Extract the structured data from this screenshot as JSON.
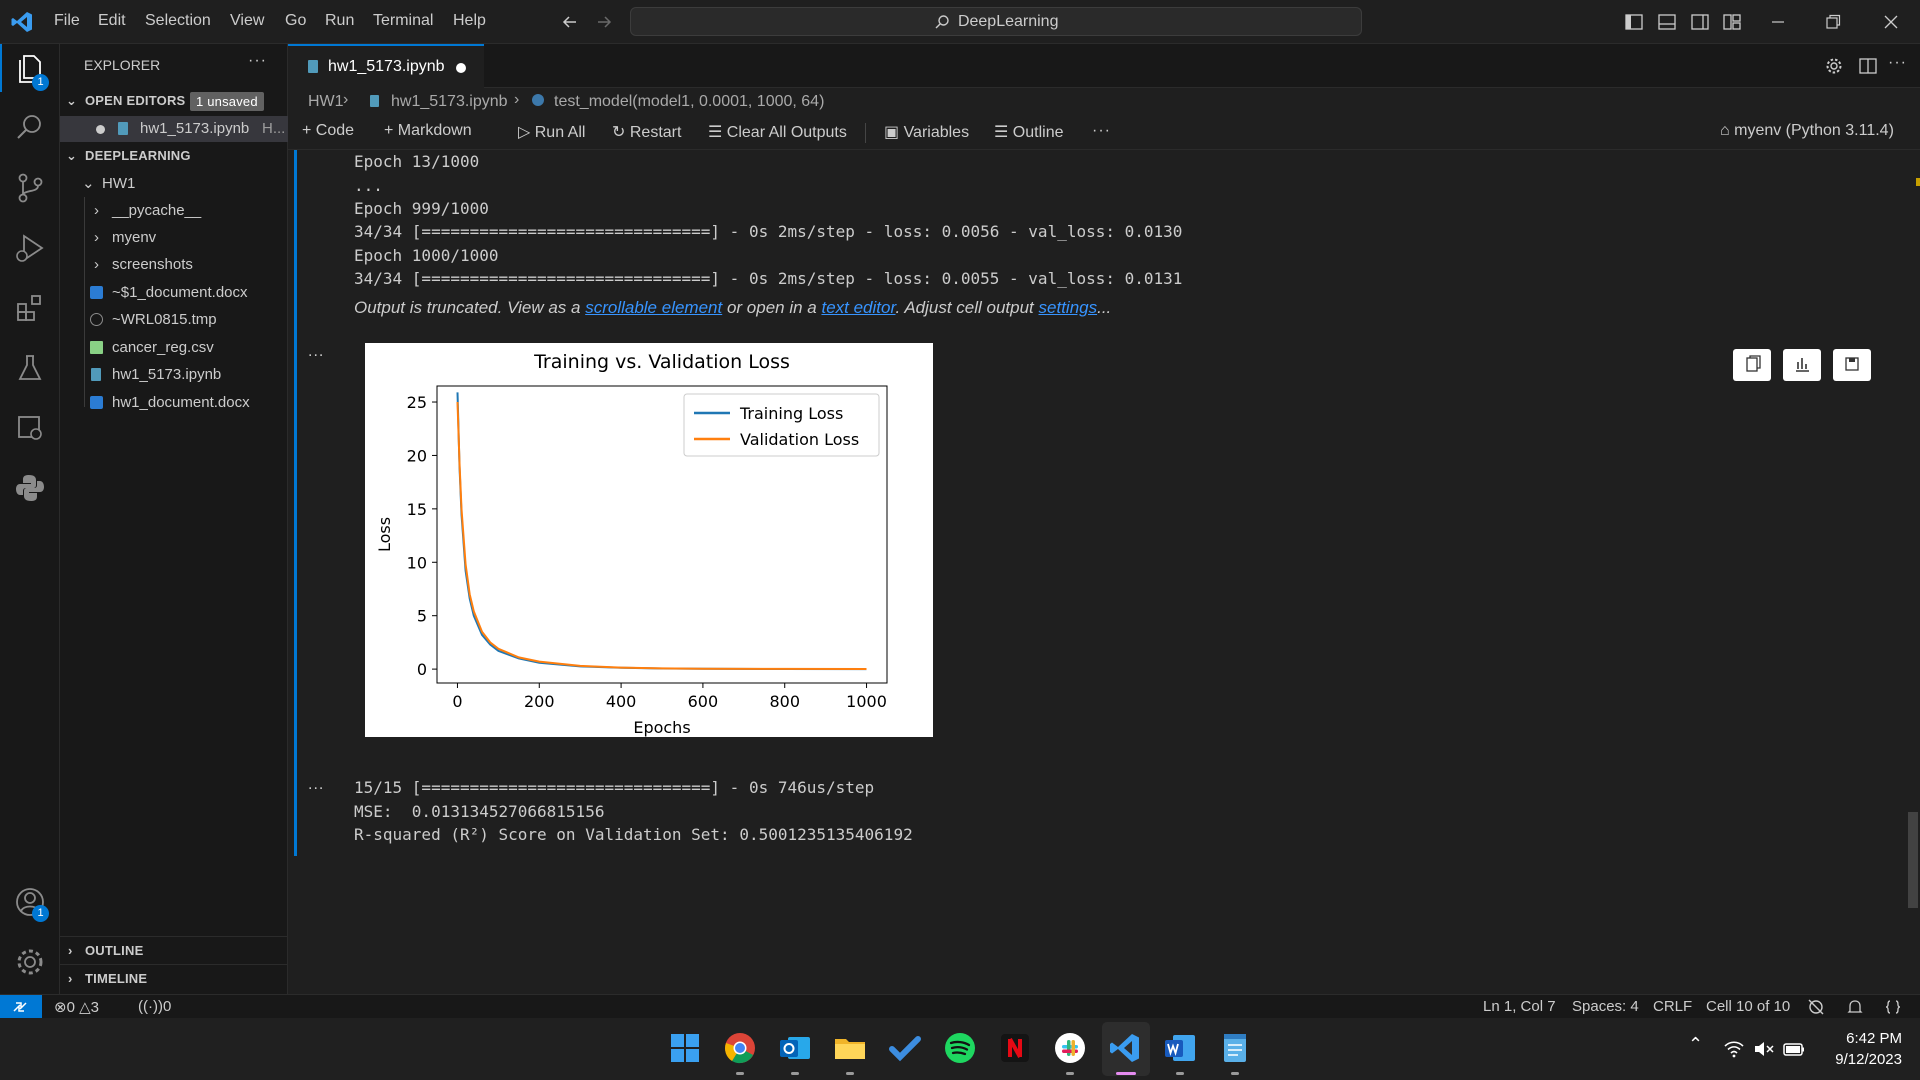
{
  "menu": [
    "File",
    "Edit",
    "Selection",
    "View",
    "Go",
    "Run",
    "Terminal",
    "Help"
  ],
  "search_text": "DeepLearning",
  "activity_badges": {
    "explorer": "1",
    "accounts": "1"
  },
  "sidebar": {
    "title": "EXPLORER",
    "open_editors_label": "OPEN EDITORS",
    "unsaved_badge": "1 unsaved",
    "open_editor_file": "hw1_5173.ipynb",
    "open_editor_suffix": "H...",
    "workspace_label": "DEEPLEARNING",
    "folder": "HW1",
    "items": [
      {
        "label": "__pycache__",
        "type": "folder"
      },
      {
        "label": "myenv",
        "type": "folder"
      },
      {
        "label": "screenshots",
        "type": "folder"
      },
      {
        "label": "~$1_document.docx",
        "type": "word"
      },
      {
        "label": "~WRL0815.tmp",
        "type": "tmp"
      },
      {
        "label": "cancer_reg.csv",
        "type": "csv"
      },
      {
        "label": "hw1_5173.ipynb",
        "type": "notebook"
      },
      {
        "label": "hw1_document.docx",
        "type": "word"
      }
    ],
    "outline_label": "OUTLINE",
    "timeline_label": "TIMELINE"
  },
  "tab": {
    "label": "hw1_5173.ipynb"
  },
  "breadcrumbs": {
    "folder": "HW1",
    "file": "hw1_5173.ipynb",
    "symbol": "test_model(model1, 0.0001, 1000, 64)"
  },
  "toolbar": {
    "code": "Code",
    "markdown": "Markdown",
    "run_all": "Run All",
    "restart": "Restart",
    "clear_outputs": "Clear All Outputs",
    "variables": "Variables",
    "outline": "Outline",
    "kernel": "myenv (Python 3.11.4)"
  },
  "output": {
    "lines": [
      "Epoch 13/1000",
      "...",
      "Epoch 999/1000",
      "34/34 [==============================] - 0s 2ms/step - loss: 0.0056 - val_loss: 0.0130",
      "Epoch 1000/1000",
      "34/34 [==============================] - 0s 2ms/step - loss: 0.0055 - val_loss: 0.0131"
    ],
    "truncated_prefix": "Output is truncated. View as a ",
    "truncated_link1": "scrollable element",
    "truncated_mid": " or open in a ",
    "truncated_link2": "text editor",
    "truncated_mid2": ". Adjust cell output ",
    "truncated_link3": "settings",
    "truncated_suffix": "...",
    "lines2": [
      "15/15 [==============================] - 0s 746us/step",
      "MSE:  0.013134527066815156",
      "R-squared (R²) Score on Validation Set: 0.5001235135406192"
    ],
    "ellipsis": "..."
  },
  "chart_data": {
    "type": "line",
    "title": "Training vs. Validation Loss",
    "xlabel": "Epochs",
    "ylabel": "Loss",
    "xlim": [
      -50,
      1050
    ],
    "ylim": [
      -1.3,
      26.5
    ],
    "xticks": [
      0,
      200,
      400,
      600,
      800,
      1000
    ],
    "yticks": [
      0,
      5,
      10,
      15,
      20,
      25
    ],
    "legend": "top-right",
    "series": [
      {
        "name": "Training Loss",
        "color": "#1f77b4",
        "x": [
          0,
          5,
          10,
          20,
          30,
          40,
          60,
          80,
          100,
          150,
          200,
          300,
          400,
          500,
          600,
          800,
          1000
        ],
        "y": [
          25.9,
          19.0,
          14.5,
          9.2,
          6.6,
          5.0,
          3.2,
          2.3,
          1.7,
          1.0,
          0.6,
          0.25,
          0.12,
          0.06,
          0.03,
          0.01,
          0.005
        ]
      },
      {
        "name": "Validation Loss",
        "color": "#ff7f0e",
        "x": [
          0,
          5,
          10,
          20,
          30,
          40,
          60,
          80,
          100,
          150,
          200,
          300,
          400,
          500,
          600,
          800,
          1000
        ],
        "y": [
          25.0,
          19.3,
          15.0,
          9.8,
          7.0,
          5.4,
          3.5,
          2.5,
          1.9,
          1.1,
          0.7,
          0.3,
          0.14,
          0.07,
          0.04,
          0.02,
          0.013
        ]
      }
    ]
  },
  "status": {
    "errors": "0",
    "warnings": "3",
    "ports": "0",
    "position": "Ln 1, Col 7",
    "spaces": "Spaces: 4",
    "eol": "CRLF",
    "cell": "Cell 10 of 10"
  },
  "clock": {
    "time": "6:42 PM",
    "date": "9/12/2023"
  }
}
